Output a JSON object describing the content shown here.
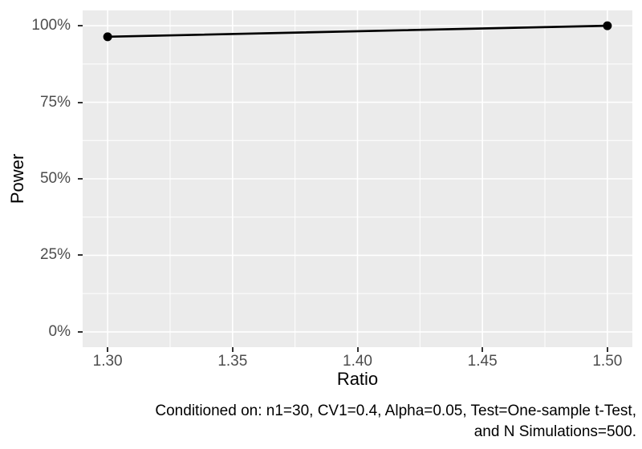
{
  "chart_data": {
    "type": "line",
    "title": "",
    "xlabel": "Ratio",
    "ylabel": "Power",
    "series": [
      {
        "name": "Power",
        "x": [
          1.3,
          1.5
        ],
        "y_percent": [
          96.4,
          100
        ]
      }
    ],
    "xlim": [
      1.29,
      1.51
    ],
    "ylim_percent": [
      -5,
      105
    ],
    "x_ticks": {
      "values": [
        1.3,
        1.35,
        1.4,
        1.45,
        1.5
      ],
      "labels": [
        "1.30",
        "1.35",
        "1.40",
        "1.45",
        "1.50"
      ]
    },
    "y_ticks": {
      "values": [
        0,
        25,
        50,
        75,
        100
      ],
      "labels": [
        "0%",
        "25%",
        "50%",
        "75%",
        "100%"
      ]
    },
    "x_minor": [
      1.325,
      1.375,
      1.425,
      1.475
    ],
    "y_minor": [
      12.5,
      37.5,
      62.5,
      87.5
    ],
    "grid": "major-and-minor",
    "legend": "none",
    "caption": {
      "line1": "Conditioned on: n1=30, CV1=0.4, Alpha=0.05, Test=One-sample t-Test,",
      "line2": "and N Simulations=500."
    },
    "colors": {
      "background": "#ffffff",
      "panel_background": "#ebebeb",
      "gridline": "#ffffff",
      "line": "#000000",
      "point": "#000000",
      "tick_text": "#4d4d4d",
      "axis_title": "#000000",
      "caption_text": "#000000",
      "tick_mark": "#333333"
    }
  }
}
